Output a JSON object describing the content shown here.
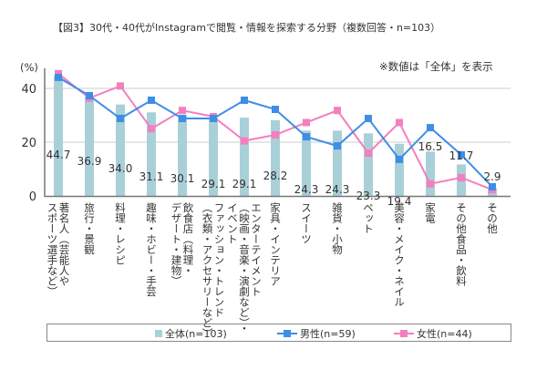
{
  "title": "【図3】30代・40代がInstagramで閲覧・情報を探索する分野（複数回答・n=103）",
  "note": "※数値は「全体」を表示",
  "colors": {
    "bar": "#a9d0d8",
    "male": "#3e8ee6",
    "female": "#f37fbf",
    "grid": "#cccccc",
    "axis": "#777777"
  },
  "legend": {
    "all": "全体(n=103)",
    "male": "男性(n=59)",
    "female": "女性(n=44)"
  },
  "chart_data": {
    "type": "bar",
    "title": "【図3】30代・40代がInstagramで閲覧・情報を探索する分野（複数回答・n=103）",
    "ylabel": "(%)",
    "xlabel": "",
    "ylim": [
      0,
      47
    ],
    "yticks": [
      0,
      20,
      40
    ],
    "grid": true,
    "legend_position": "bottom",
    "categories": [
      "著名人（芸能人やスポーツ選手など）",
      "旅行・景観",
      "料理・レシピ",
      "趣味・ホビー・手芸",
      "飲食店（料理・デザート・建物）",
      "ファッション・トレンド（衣類・アクセサリーなど）",
      "エンターテイメント（映画・音楽・演劇など）・イベント",
      "家具・インテリア",
      "スイーツ",
      "雑貨・小物",
      "ペット",
      "美容・メイク・ネイル",
      "家電",
      "その他食品・飲料",
      "その他"
    ],
    "category_lines": [
      [
        "著名人（芸能人や",
        "スポーツ選手など）"
      ],
      [
        "旅行・景観"
      ],
      [
        "料理・レシピ"
      ],
      [
        "趣味・ホビー・手芸"
      ],
      [
        "飲食店（料理・",
        "デザート・建物）"
      ],
      [
        "ファッション・トレンド",
        "（衣類・アクセサリーなど）"
      ],
      [
        "エンターテイメント",
        "（映画・音楽・演劇など）・",
        "イベント"
      ],
      [
        "家具・インテリア"
      ],
      [
        "スイーツ"
      ],
      [
        "雑貨・小物"
      ],
      [
        "ペット"
      ],
      [
        "美容・メイク・ネイル"
      ],
      [
        "家電"
      ],
      [
        "その他食品・飲料"
      ],
      [
        "その他"
      ]
    ],
    "series": [
      {
        "name": "全体(n=103)",
        "type": "bar",
        "values": [
          44.7,
          36.9,
          34.0,
          31.1,
          30.1,
          29.1,
          29.1,
          28.2,
          24.3,
          24.3,
          23.3,
          19.4,
          16.5,
          11.7,
          2.9
        ]
      },
      {
        "name": "男性(n=59)",
        "type": "line",
        "values": [
          44.1,
          37.3,
          28.8,
          35.6,
          28.8,
          28.8,
          35.6,
          32.2,
          22.0,
          18.6,
          28.8,
          13.6,
          25.4,
          15.3,
          3.4
        ]
      },
      {
        "name": "女性(n=44)",
        "type": "line",
        "values": [
          45.5,
          36.4,
          40.9,
          25.0,
          31.8,
          29.5,
          20.5,
          22.7,
          27.3,
          31.8,
          15.9,
          27.3,
          4.5,
          6.8,
          2.3
        ]
      }
    ],
    "data_labels": [
      "44.7",
      "36.9",
      "34.0",
      "31.1",
      "30.1",
      "29.1",
      "29.1",
      "28.2",
      "24.3",
      "24.3",
      "23.3",
      "19.4",
      "16.5",
      "11.7",
      "2.9"
    ]
  }
}
